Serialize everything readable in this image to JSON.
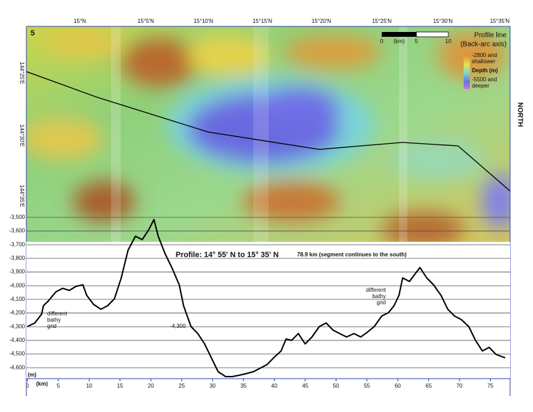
{
  "map": {
    "panel": "5",
    "lat_labels": [
      "15°N",
      "15°5'N",
      "15°10'N",
      "15°15'N",
      "15°20'N",
      "15°25'N",
      "15°30'N",
      "15°35'N"
    ],
    "lon_labels": [
      "144°25'E",
      "144°30'E",
      "144°35'E"
    ],
    "north": "NORTH",
    "scale": {
      "start": "0",
      "unit": "(km)",
      "mid": "5",
      "end": "10"
    },
    "legend": {
      "line": "Profile line",
      "line_sub": "(Back-arc axis)",
      "shallow": [
        "-2800 and",
        "shallower"
      ],
      "depth": "Depth (m)",
      "deep": [
        "-5500 and",
        "deeper"
      ]
    }
  },
  "chart_data": {
    "type": "line",
    "title": "Profile:  14° 55' N to 15° 35' N",
    "subtitle": "78.9 km (segment continues to the south)",
    "x_label": "(km)",
    "y_label": "(m)",
    "color": "#000000",
    "grid": true,
    "x": [
      0,
      1.2,
      2.3,
      2.6,
      3.4,
      4.6,
      5.7,
      6.8,
      7.9,
      9.0,
      9.6,
      10.7,
      11.9,
      13.0,
      14.1,
      15.2,
      16.3,
      17.5,
      18.6,
      19.7,
      20.5,
      21.2,
      22.3,
      23.4,
      24.6,
      25.3,
      26.5,
      27.6,
      28.7,
      29.8,
      30.9,
      32.1,
      33.2,
      34.3,
      35.4,
      36.6,
      37.7,
      38.8,
      39.9,
      41.1,
      41.9,
      42.8,
      43.9,
      45.0,
      46.1,
      47.3,
      48.4,
      49.5,
      50.6,
      51.7,
      52.9,
      54.0,
      55.1,
      56.2,
      57.4,
      58.5,
      59.4,
      60.2,
      60.8,
      61.9,
      63.0,
      63.6,
      64.7,
      65.8,
      67.0,
      68.1,
      69.2,
      70.3,
      71.5,
      72.6,
      73.7,
      74.8,
      75.9,
      77.4
    ],
    "values": [
      -4299,
      -4273,
      -4207,
      -4146,
      -4111,
      -4045,
      -4019,
      -4034,
      -4004,
      -3994,
      -4070,
      -4136,
      -4172,
      -4146,
      -4095,
      -3943,
      -3740,
      -3638,
      -3663,
      -3587,
      -3516,
      -3638,
      -3765,
      -3867,
      -3994,
      -4146,
      -4299,
      -4350,
      -4426,
      -4527,
      -4629,
      -4665,
      -4665,
      -4655,
      -4644,
      -4629,
      -4604,
      -4578,
      -4527,
      -4477,
      -4390,
      -4400,
      -4350,
      -4426,
      -4375,
      -4299,
      -4273,
      -4324,
      -4350,
      -4375,
      -4350,
      -4375,
      -4339,
      -4299,
      -4222,
      -4197,
      -4146,
      -4070,
      -3943,
      -3969,
      -3902,
      -3867,
      -3943,
      -3994,
      -4070,
      -4172,
      -4222,
      -4248,
      -4299,
      -4400,
      -4477,
      -4451,
      -4502,
      -4528
    ],
    "xlim": [
      0,
      78.2
    ],
    "ylim": [
      -4680,
      -3460
    ],
    "xticks": [
      0,
      5,
      10,
      15,
      20,
      25,
      30,
      35,
      40,
      45,
      50,
      55,
      60,
      65,
      70,
      75
    ],
    "yticks": [
      {
        "value": -3500,
        "label": "-3,500"
      },
      {
        "value": -3600,
        "label": "-3,600"
      },
      {
        "value": -3700,
        "label": "-3,700"
      },
      {
        "value": -3800,
        "label": "-3,800"
      },
      {
        "value": -3900,
        "label": "-3,900"
      },
      {
        "value": -4000,
        "label": "-4,000"
      },
      {
        "value": -4100,
        "label": "-4,100"
      },
      {
        "value": -4200,
        "label": "-4,200"
      },
      {
        "value": -4300,
        "label": "-4,300"
      },
      {
        "value": -4400,
        "label": "-4,400"
      },
      {
        "value": -4500,
        "label": "-4,500"
      },
      {
        "value": -4600,
        "label": "-4,600"
      }
    ],
    "annotations": [
      [
        "different",
        "bathy",
        "grid"
      ],
      [
        "different",
        "bathy",
        "grid"
      ],
      "-4,300"
    ]
  }
}
